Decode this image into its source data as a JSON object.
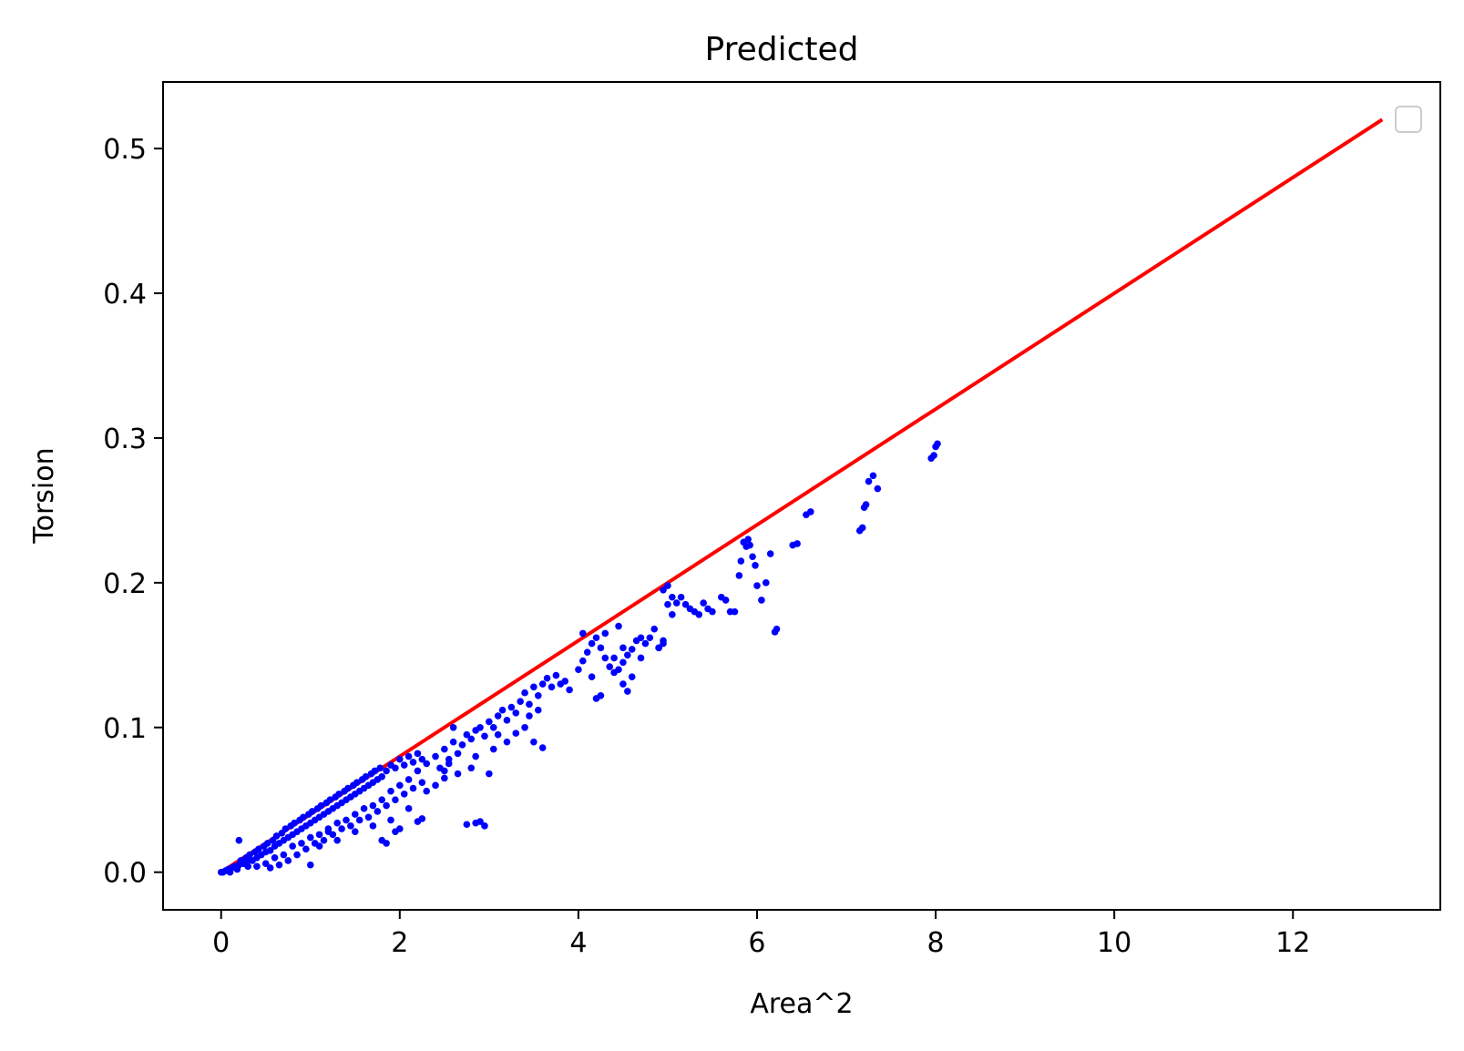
{
  "chart_data": {
    "type": "scatter",
    "title": "Predicted",
    "xlabel": "Area^2",
    "ylabel": "Torsion",
    "xlim": [
      -0.65,
      13.65
    ],
    "ylim": [
      -0.026,
      0.546
    ],
    "xticks": [
      0,
      2,
      4,
      6,
      8,
      10,
      12
    ],
    "yticks": [
      0.0,
      0.1,
      0.2,
      0.3,
      0.4,
      0.5
    ],
    "xtick_labels": [
      "0",
      "2",
      "4",
      "6",
      "8",
      "10",
      "12"
    ],
    "ytick_labels": [
      "0.0",
      "0.1",
      "0.2",
      "0.3",
      "0.4",
      "0.5"
    ],
    "grid": false,
    "legend": {
      "placement": "top-right",
      "entries": []
    },
    "colors": {
      "points": "#0000ff",
      "line": "#ff0000",
      "axes": "#000000",
      "legend_border": "#cccccc"
    },
    "series": [
      {
        "kind": "line",
        "color": "#ff0000",
        "x": [
          0,
          13
        ],
        "y": [
          0.0,
          0.52
        ]
      },
      {
        "kind": "scatter",
        "color": "#0000ff",
        "points": [
          [
            0.0,
            0.0
          ],
          [
            0.02,
            0.0
          ],
          [
            0.05,
            0.001
          ],
          [
            0.08,
            0.002
          ],
          [
            0.1,
            0.0
          ],
          [
            0.12,
            0.003
          ],
          [
            0.15,
            0.004
          ],
          [
            0.18,
            0.002
          ],
          [
            0.2,
            0.005
          ],
          [
            0.2,
            0.022
          ],
          [
            0.22,
            0.008
          ],
          [
            0.25,
            0.006
          ],
          [
            0.28,
            0.01
          ],
          [
            0.3,
            0.004
          ],
          [
            0.32,
            0.012
          ],
          [
            0.35,
            0.008
          ],
          [
            0.38,
            0.014
          ],
          [
            0.4,
            0.01
          ],
          [
            0.42,
            0.016
          ],
          [
            0.45,
            0.012
          ],
          [
            0.48,
            0.018
          ],
          [
            0.5,
            0.014
          ],
          [
            0.52,
            0.02
          ],
          [
            0.55,
            0.015
          ],
          [
            0.58,
            0.022
          ],
          [
            0.6,
            0.018
          ],
          [
            0.62,
            0.025
          ],
          [
            0.65,
            0.02
          ],
          [
            0.68,
            0.027
          ],
          [
            0.7,
            0.022
          ],
          [
            0.72,
            0.03
          ],
          [
            0.75,
            0.024
          ],
          [
            0.78,
            0.032
          ],
          [
            0.8,
            0.026
          ],
          [
            0.82,
            0.034
          ],
          [
            0.85,
            0.028
          ],
          [
            0.88,
            0.036
          ],
          [
            0.9,
            0.03
          ],
          [
            0.92,
            0.038
          ],
          [
            0.95,
            0.032
          ],
          [
            0.98,
            0.04
          ],
          [
            1.0,
            0.034
          ],
          [
            1.02,
            0.042
          ],
          [
            1.05,
            0.036
          ],
          [
            1.08,
            0.044
          ],
          [
            1.1,
            0.038
          ],
          [
            1.12,
            0.046
          ],
          [
            1.15,
            0.04
          ],
          [
            1.18,
            0.048
          ],
          [
            1.2,
            0.042
          ],
          [
            1.22,
            0.05
          ],
          [
            1.25,
            0.044
          ],
          [
            1.28,
            0.052
          ],
          [
            1.3,
            0.046
          ],
          [
            1.32,
            0.054
          ],
          [
            1.35,
            0.048
          ],
          [
            1.38,
            0.056
          ],
          [
            1.4,
            0.05
          ],
          [
            1.42,
            0.058
          ],
          [
            1.45,
            0.052
          ],
          [
            1.48,
            0.06
          ],
          [
            1.5,
            0.054
          ],
          [
            1.52,
            0.062
          ],
          [
            1.55,
            0.056
          ],
          [
            1.58,
            0.064
          ],
          [
            1.6,
            0.058
          ],
          [
            1.62,
            0.066
          ],
          [
            1.65,
            0.06
          ],
          [
            1.68,
            0.068
          ],
          [
            1.7,
            0.062
          ],
          [
            1.72,
            0.07
          ],
          [
            1.75,
            0.064
          ],
          [
            1.78,
            0.072
          ],
          [
            1.8,
            0.066
          ],
          [
            1.85,
            0.07
          ],
          [
            1.9,
            0.074
          ],
          [
            1.95,
            0.072
          ],
          [
            2.0,
            0.078
          ],
          [
            2.05,
            0.074
          ],
          [
            2.1,
            0.08
          ],
          [
            2.15,
            0.076
          ],
          [
            2.2,
            0.082
          ],
          [
            2.25,
            0.078
          ],
          [
            0.3,
            0.008
          ],
          [
            0.4,
            0.004
          ],
          [
            0.5,
            0.006
          ],
          [
            0.6,
            0.01
          ],
          [
            0.7,
            0.012
          ],
          [
            0.8,
            0.018
          ],
          [
            0.9,
            0.02
          ],
          [
            1.0,
            0.024
          ],
          [
            1.1,
            0.026
          ],
          [
            1.2,
            0.03
          ],
          [
            1.3,
            0.034
          ],
          [
            1.4,
            0.036
          ],
          [
            1.5,
            0.04
          ],
          [
            1.6,
            0.044
          ],
          [
            1.7,
            0.046
          ],
          [
            1.8,
            0.05
          ],
          [
            1.9,
            0.056
          ],
          [
            2.0,
            0.06
          ],
          [
            2.1,
            0.064
          ],
          [
            2.2,
            0.07
          ],
          [
            0.55,
            0.003
          ],
          [
            0.65,
            0.005
          ],
          [
            0.75,
            0.008
          ],
          [
            0.85,
            0.012
          ],
          [
            0.95,
            0.016
          ],
          [
            1.05,
            0.02
          ],
          [
            1.15,
            0.022
          ],
          [
            1.25,
            0.026
          ],
          [
            1.35,
            0.03
          ],
          [
            1.45,
            0.032
          ],
          [
            1.55,
            0.036
          ],
          [
            1.65,
            0.038
          ],
          [
            1.75,
            0.042
          ],
          [
            1.85,
            0.046
          ],
          [
            1.95,
            0.05
          ],
          [
            2.05,
            0.054
          ],
          [
            2.15,
            0.058
          ],
          [
            2.25,
            0.062
          ],
          [
            1.1,
            0.018
          ],
          [
            1.3,
            0.022
          ],
          [
            1.5,
            0.028
          ],
          [
            1.7,
            0.032
          ],
          [
            1.9,
            0.036
          ],
          [
            2.1,
            0.044
          ],
          [
            2.3,
            0.056
          ],
          [
            2.4,
            0.06
          ],
          [
            2.5,
            0.065
          ],
          [
            2.3,
            0.075
          ],
          [
            2.4,
            0.08
          ],
          [
            2.45,
            0.072
          ],
          [
            2.5,
            0.085
          ],
          [
            2.55,
            0.078
          ],
          [
            2.6,
            0.09
          ],
          [
            2.65,
            0.082
          ],
          [
            2.7,
            0.088
          ],
          [
            2.75,
            0.095
          ],
          [
            2.8,
            0.092
          ],
          [
            2.85,
            0.098
          ],
          [
            2.9,
            0.1
          ],
          [
            2.95,
            0.094
          ],
          [
            3.0,
            0.104
          ],
          [
            3.05,
            0.1
          ],
          [
            3.1,
            0.108
          ],
          [
            3.15,
            0.112
          ],
          [
            3.2,
            0.105
          ],
          [
            3.25,
            0.114
          ],
          [
            3.3,
            0.11
          ],
          [
            3.35,
            0.118
          ],
          [
            3.4,
            0.124
          ],
          [
            3.45,
            0.116
          ],
          [
            3.5,
            0.128
          ],
          [
            3.55,
            0.122
          ],
          [
            3.6,
            0.13
          ],
          [
            3.65,
            0.134
          ],
          [
            3.7,
            0.128
          ],
          [
            3.75,
            0.136
          ],
          [
            3.8,
            0.13
          ],
          [
            3.85,
            0.132
          ],
          [
            3.9,
            0.126
          ],
          [
            2.6,
            0.1
          ],
          [
            2.5,
            0.07
          ],
          [
            2.55,
            0.075
          ],
          [
            2.65,
            0.068
          ],
          [
            2.8,
            0.072
          ],
          [
            2.85,
            0.08
          ],
          [
            3.0,
            0.068
          ],
          [
            3.05,
            0.085
          ],
          [
            3.1,
            0.095
          ],
          [
            3.2,
            0.09
          ],
          [
            3.3,
            0.096
          ],
          [
            3.4,
            0.1
          ],
          [
            3.5,
            0.09
          ],
          [
            3.6,
            0.086
          ],
          [
            3.45,
            0.108
          ],
          [
            3.55,
            0.112
          ],
          [
            2.2,
            0.035
          ],
          [
            2.25,
            0.037
          ],
          [
            1.95,
            0.028
          ],
          [
            2.0,
            0.03
          ],
          [
            1.8,
            0.022
          ],
          [
            1.85,
            0.02
          ],
          [
            1.2,
            0.028
          ],
          [
            1.0,
            0.005
          ],
          [
            2.75,
            0.033
          ],
          [
            2.85,
            0.034
          ],
          [
            2.95,
            0.032
          ],
          [
            2.9,
            0.035
          ],
          [
            4.0,
            0.14
          ],
          [
            4.05,
            0.146
          ],
          [
            4.1,
            0.152
          ],
          [
            4.15,
            0.158
          ],
          [
            4.2,
            0.162
          ],
          [
            4.25,
            0.155
          ],
          [
            4.3,
            0.148
          ],
          [
            4.35,
            0.142
          ],
          [
            4.4,
            0.138
          ],
          [
            4.45,
            0.14
          ],
          [
            4.5,
            0.145
          ],
          [
            4.55,
            0.15
          ],
          [
            4.6,
            0.154
          ],
          [
            4.65,
            0.16
          ],
          [
            4.7,
            0.162
          ],
          [
            4.75,
            0.158
          ],
          [
            4.8,
            0.162
          ],
          [
            4.85,
            0.168
          ],
          [
            4.9,
            0.155
          ],
          [
            4.95,
            0.16
          ],
          [
            4.2,
            0.12
          ],
          [
            4.25,
            0.122
          ],
          [
            4.5,
            0.13
          ],
          [
            4.55,
            0.125
          ],
          [
            4.05,
            0.165
          ],
          [
            4.15,
            0.135
          ],
          [
            4.3,
            0.165
          ],
          [
            4.45,
            0.17
          ],
          [
            4.6,
            0.135
          ],
          [
            4.4,
            0.148
          ],
          [
            4.5,
            0.155
          ],
          [
            4.7,
            0.148
          ],
          [
            4.95,
            0.195
          ],
          [
            5.0,
            0.198
          ],
          [
            5.05,
            0.19
          ],
          [
            5.1,
            0.186
          ],
          [
            5.15,
            0.19
          ],
          [
            5.2,
            0.185
          ],
          [
            5.25,
            0.182
          ],
          [
            5.3,
            0.18
          ],
          [
            5.35,
            0.178
          ],
          [
            5.4,
            0.186
          ],
          [
            5.45,
            0.182
          ],
          [
            5.5,
            0.18
          ],
          [
            5.6,
            0.19
          ],
          [
            5.65,
            0.188
          ],
          [
            5.7,
            0.18
          ],
          [
            5.75,
            0.18
          ],
          [
            5.8,
            0.205
          ],
          [
            5.82,
            0.215
          ],
          [
            5.85,
            0.228
          ],
          [
            5.88,
            0.225
          ],
          [
            5.9,
            0.23
          ],
          [
            5.92,
            0.226
          ],
          [
            5.95,
            0.218
          ],
          [
            5.98,
            0.212
          ],
          [
            6.0,
            0.198
          ],
          [
            6.05,
            0.188
          ],
          [
            6.1,
            0.2
          ],
          [
            6.15,
            0.22
          ],
          [
            6.2,
            0.166
          ],
          [
            6.22,
            0.168
          ],
          [
            5.0,
            0.185
          ],
          [
            5.05,
            0.178
          ],
          [
            4.9,
            0.155
          ],
          [
            4.95,
            0.158
          ],
          [
            6.4,
            0.226
          ],
          [
            6.45,
            0.227
          ],
          [
            6.55,
            0.247
          ],
          [
            6.6,
            0.249
          ],
          [
            7.15,
            0.236
          ],
          [
            7.18,
            0.238
          ],
          [
            7.2,
            0.252
          ],
          [
            7.22,
            0.254
          ],
          [
            7.25,
            0.27
          ],
          [
            7.3,
            0.274
          ],
          [
            7.35,
            0.265
          ],
          [
            7.95,
            0.286
          ],
          [
            7.98,
            0.288
          ],
          [
            8.0,
            0.294
          ],
          [
            8.02,
            0.296
          ]
        ]
      }
    ]
  }
}
